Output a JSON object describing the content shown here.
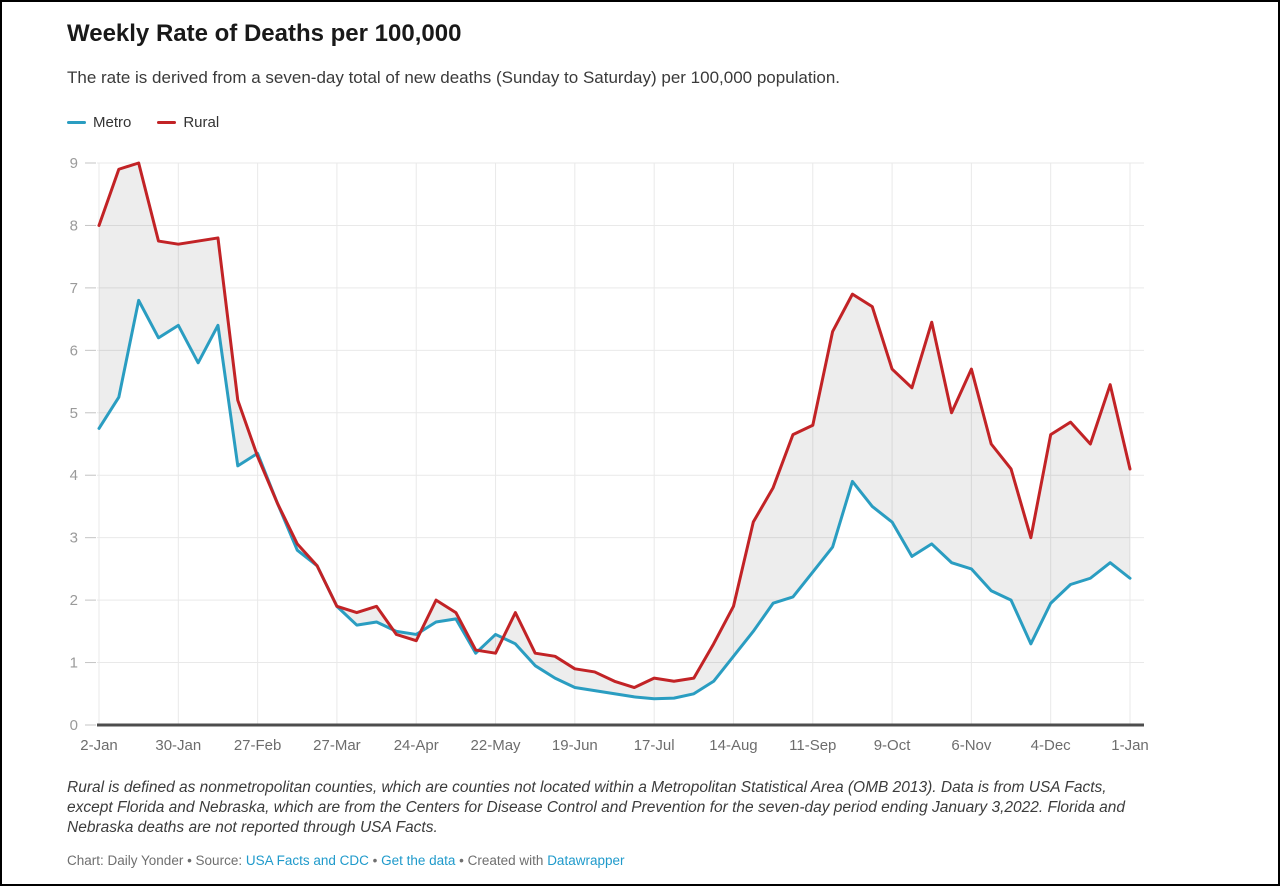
{
  "header": {
    "title": "Weekly Rate of Deaths per 100,000",
    "subtitle": "The rate is derived from a seven-day total of new deaths (Sunday to Saturday) per 100,000 population."
  },
  "footer": {
    "notes": "Rural is defined as nonmetropolitan counties, which are counties not located within a Metropolitan Statistical Area (OMB 2013). Data is from USA Facts, except Florida and Nebraska, which are from the Centers for Disease Control and Prevention for the seven-day period ending January 3,2022. Florida and Nebraska deaths are not reported through USA Facts.",
    "credit_prefix": "Chart: Daily Yonder • Source: ",
    "source_link": "USA Facts and CDC",
    "sep1": " • ",
    "data_link": "Get the data",
    "sep2": " • Created with ",
    "tool_link": "Datawrapper"
  },
  "chart_data": {
    "type": "line",
    "title": "Weekly Rate of Deaths per 100,000",
    "x_tick_labels": [
      "2-Jan",
      "30-Jan",
      "27-Feb",
      "27-Mar",
      "24-Apr",
      "22-May",
      "19-Jun",
      "17-Jul",
      "14-Aug",
      "11-Sep",
      "9-Oct",
      "6-Nov",
      "4-Dec",
      "1-Jan"
    ],
    "weeks_per_point": 1,
    "points_per_tick": 4,
    "ylim": [
      0,
      9
    ],
    "y_ticks": [
      0,
      1,
      2,
      3,
      4,
      5,
      6,
      7,
      8,
      9
    ],
    "grid": true,
    "legend_position": "top-left",
    "band_fill_between_series": true,
    "band_color": "rgba(0,0,0,0.07)",
    "axis_color": "#4d4d4d",
    "grid_color": "#e9e9e9",
    "tick_label_color_x": "#6d6d6d",
    "tick_label_color_y": "#9a9a9a",
    "series": [
      {
        "name": "Metro",
        "color": "#2a9dc1",
        "values": [
          4.75,
          5.25,
          6.8,
          6.2,
          6.4,
          5.8,
          6.4,
          4.15,
          4.35,
          3.55,
          2.8,
          2.55,
          1.9,
          1.6,
          1.65,
          1.5,
          1.45,
          1.65,
          1.7,
          1.15,
          1.45,
          1.3,
          0.95,
          0.75,
          0.6,
          0.55,
          0.5,
          0.45,
          0.42,
          0.43,
          0.5,
          0.7,
          1.1,
          1.5,
          1.95,
          2.05,
          2.45,
          2.85,
          3.9,
          3.5,
          3.25,
          2.7,
          2.9,
          2.6,
          2.5,
          2.15,
          2.0,
          1.3,
          1.95,
          2.25,
          2.35,
          2.6,
          2.35
        ]
      },
      {
        "name": "Rural",
        "color": "#c22326",
        "values": [
          8.0,
          8.9,
          9.0,
          7.75,
          7.7,
          7.75,
          7.8,
          5.2,
          4.3,
          3.55,
          2.9,
          2.55,
          1.9,
          1.8,
          1.9,
          1.45,
          1.35,
          2.0,
          1.8,
          1.2,
          1.15,
          1.8,
          1.15,
          1.1,
          0.9,
          0.85,
          0.7,
          0.6,
          0.75,
          0.7,
          0.75,
          1.3,
          1.9,
          3.25,
          3.8,
          4.65,
          4.8,
          6.3,
          6.9,
          6.7,
          5.7,
          5.4,
          6.45,
          5.0,
          5.7,
          4.5,
          4.1,
          3.0,
          4.65,
          4.85,
          4.5,
          5.45,
          4.1
        ]
      }
    ]
  }
}
